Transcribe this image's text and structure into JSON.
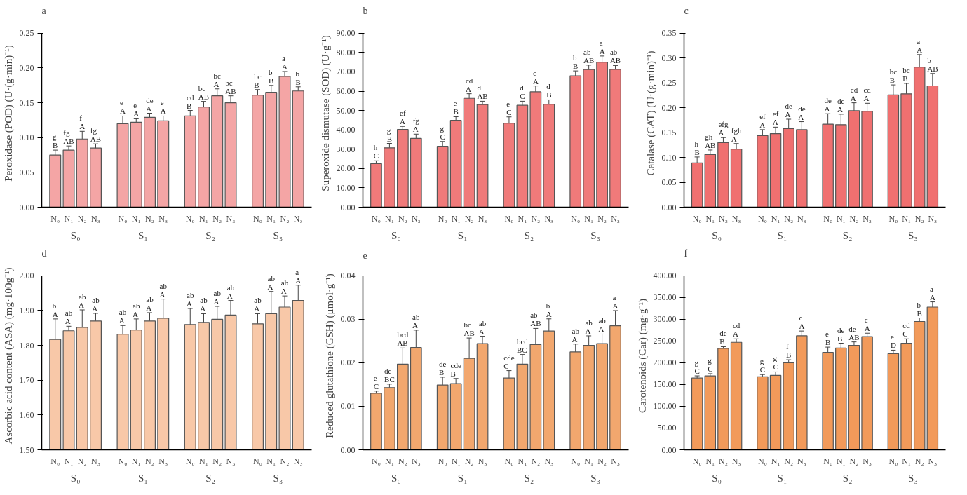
{
  "chart_data": [
    {
      "type": "bar",
      "title": "a",
      "ylabel": "Peroxidase (POD) (U·(g·min)⁻¹)",
      "color": "#f4a5a5",
      "grid": false,
      "categories": [
        "N₀",
        "N₁",
        "N₂",
        "N₃",
        "N₀",
        "N₁",
        "N₂",
        "N₃",
        "N₀",
        "N₁",
        "N₂",
        "N₃",
        "N₀",
        "N₁",
        "N₂",
        "N₃"
      ],
      "annotations": [
        "S₀",
        "S₁",
        "S₂",
        "S₃"
      ],
      "values": [
        0.075,
        0.082,
        0.098,
        0.085,
        0.12,
        0.122,
        0.129,
        0.124,
        0.131,
        0.144,
        0.16,
        0.15,
        0.161,
        0.165,
        0.188,
        0.167
      ],
      "errors": [
        0.007,
        0.006,
        0.011,
        0.006,
        0.011,
        0.005,
        0.006,
        0.007,
        0.008,
        0.008,
        0.01,
        0.01,
        0.008,
        0.01,
        0.007,
        0.006
      ],
      "value_labels": [
        "g\nB",
        "fg\nAB",
        "f\nA",
        "fg\nAB",
        "e\nA",
        "e\nA",
        "de\nA",
        "e\nA",
        "cd\nB",
        "bc\nAB",
        "bc\nA",
        "bc\nAB",
        "bc\nB",
        "b\nB",
        "a\nA",
        "b\nB"
      ],
      "ylim": [
        0,
        0.25
      ],
      "yticks": [
        {
          "value": 0,
          "label": "0.00"
        },
        {
          "value": 0.05,
          "label": "0.05"
        },
        {
          "value": 0.1,
          "label": "0.10"
        },
        {
          "value": 0.15,
          "label": "0.15"
        },
        {
          "value": 0.2,
          "label": "0.20"
        },
        {
          "value": 0.25,
          "label": "0.25"
        }
      ]
    },
    {
      "type": "bar",
      "title": "b",
      "ylabel": "Superoxide dismutase (SOD) (U·g⁻¹)",
      "color": "#f07a7a",
      "grid": false,
      "categories": [
        "N₀",
        "N₁",
        "N₂",
        "N₃",
        "N₀",
        "N₁",
        "N₂",
        "N₃",
        "N₀",
        "N₁",
        "N₂",
        "N₃",
        "N₀",
        "N₁",
        "N₂",
        "N₃"
      ],
      "annotations": [
        "S₀",
        "S₁",
        "S₂",
        "S₃"
      ],
      "values": [
        22.5,
        30.7,
        40.2,
        35.6,
        31.5,
        44.9,
        56.3,
        53.1,
        43.5,
        52.7,
        59.7,
        53.3,
        68.0,
        71.2,
        75.0,
        71.3
      ],
      "errors": [
        1.5,
        2.3,
        1.6,
        2.2,
        2.5,
        1.9,
        2.4,
        1.7,
        3.2,
        2.1,
        3.0,
        2.2,
        2.5,
        2.3,
        3.2,
        2.0
      ],
      "value_labels": [
        "h\nC",
        "g\nB",
        "ef\nA",
        "fg\nA",
        "g\nC",
        "e\nB",
        "cd\nA",
        "d\nAB",
        "e\nC",
        "d\nC",
        "c\nA",
        "d\nB",
        "b\nB",
        "ab\nAB",
        "a\nA",
        "ab\nAB"
      ],
      "ylim": [
        0,
        90
      ],
      "yticks": [
        {
          "value": 0,
          "label": "0.00"
        },
        {
          "value": 10,
          "label": "10.00"
        },
        {
          "value": 20,
          "label": "20.00"
        },
        {
          "value": 30,
          "label": "30.00"
        },
        {
          "value": 40,
          "label": "40.00"
        },
        {
          "value": 50,
          "label": "50.00"
        },
        {
          "value": 60,
          "label": "60.00"
        },
        {
          "value": 70,
          "label": "70.00"
        },
        {
          "value": 80,
          "label": "80.00"
        },
        {
          "value": 90,
          "label": "90.00"
        }
      ]
    },
    {
      "type": "bar",
      "title": "c",
      "ylabel": "Catalase (CAT) (U·(g·min)⁻¹)",
      "color": "#f07070",
      "grid": false,
      "categories": [
        "N₀",
        "N₁",
        "N₂",
        "N₃",
        "N₀",
        "N₁",
        "N₂",
        "N₃",
        "N₀",
        "N₁",
        "N₂",
        "N₃",
        "N₀",
        "N₁",
        "N₂",
        "N₃"
      ],
      "annotations": [
        "S₀",
        "S₁",
        "S₂",
        "S₃"
      ],
      "values": [
        0.089,
        0.106,
        0.13,
        0.117,
        0.144,
        0.148,
        0.158,
        0.156,
        0.167,
        0.166,
        0.194,
        0.193,
        0.226,
        0.228,
        0.282,
        0.244
      ],
      "errors": [
        0.012,
        0.009,
        0.01,
        0.011,
        0.012,
        0.013,
        0.019,
        0.016,
        0.021,
        0.021,
        0.016,
        0.016,
        0.02,
        0.021,
        0.025,
        0.025
      ],
      "value_labels": [
        "h\nB",
        "gh\nAB",
        "efg\nA",
        "fgh\nA",
        "ef\nA",
        "ef\nA",
        "de\nA",
        "de\nA",
        "de\nA",
        "de\nA",
        "cd\nA",
        "cd\nA",
        "bc\nB",
        "bc\nB",
        "a\nA",
        "b\nAB"
      ],
      "ylim": [
        0,
        0.35
      ],
      "yticks": [
        {
          "value": 0,
          "label": "0.00"
        },
        {
          "value": 0.05,
          "label": "0.05"
        },
        {
          "value": 0.1,
          "label": "0.10"
        },
        {
          "value": 0.15,
          "label": "0.15"
        },
        {
          "value": 0.2,
          "label": "0.20"
        },
        {
          "value": 0.25,
          "label": "0.25"
        },
        {
          "value": 0.3,
          "label": "0.30"
        },
        {
          "value": 0.35,
          "label": "0.35"
        }
      ]
    },
    {
      "type": "bar",
      "title": "d",
      "ylabel": "Ascorbic acid content (ASA) (mg·100g⁻¹)",
      "color": "#f8c8a8",
      "grid": false,
      "categories": [
        "N₀",
        "N₁",
        "N₂",
        "N₃",
        "N₀",
        "N₁",
        "N₂",
        "N₃",
        "N₀",
        "N₁",
        "N₂",
        "N₃",
        "N₀",
        "N₁",
        "N₂",
        "N₃"
      ],
      "annotations": [
        "S₀",
        "S₁",
        "S₂",
        "S₃"
      ],
      "values": [
        1.817,
        1.842,
        1.852,
        1.87,
        1.832,
        1.844,
        1.87,
        1.878,
        1.86,
        1.866,
        1.875,
        1.887,
        1.862,
        1.891,
        1.91,
        1.929
      ],
      "errors": [
        0.059,
        0.013,
        0.05,
        0.022,
        0.025,
        0.032,
        0.024,
        0.055,
        0.046,
        0.025,
        0.037,
        0.042,
        0.029,
        0.064,
        0.032,
        0.044
      ],
      "value_labels": [
        "b\nA",
        "ab\nA",
        "ab\nA",
        "ab\nA",
        "ab\nA",
        "ab\nA",
        "ab\nA",
        "ab\nA",
        "ab\nA",
        "ab\nA",
        "ab\nA",
        "ab\nA",
        "ab\nA",
        "ab\nA",
        "ab\nA",
        "a\nA"
      ],
      "ylim": [
        1.5,
        2.0
      ],
      "yticks": [
        {
          "value": 1.5,
          "label": "1.50"
        },
        {
          "value": 1.6,
          "label": "1.60"
        },
        {
          "value": 1.7,
          "label": "1.70"
        },
        {
          "value": 1.8,
          "label": "1.80"
        },
        {
          "value": 1.9,
          "label": "1.90"
        },
        {
          "value": 2.0,
          "label": "2.00"
        }
      ]
    },
    {
      "type": "bar",
      "title": "e",
      "ylabel": "Reduced glutathione (GSH) (μmol·g⁻¹)",
      "color": "#f2a76e",
      "grid": false,
      "categories": [
        "N₀",
        "N₁",
        "N₂",
        "N₃",
        "N₀",
        "N₁",
        "N₂",
        "N₃",
        "N₀",
        "N₁",
        "N₂",
        "N₃",
        "N₀",
        "N₁",
        "N₂",
        "N₃"
      ],
      "annotations": [
        "S₀",
        "S₁",
        "S₂",
        "S₃"
      ],
      "values": [
        0.013,
        0.0143,
        0.0197,
        0.0235,
        0.0149,
        0.0152,
        0.021,
        0.0244,
        0.0165,
        0.0197,
        0.0242,
        0.0273,
        0.0225,
        0.024,
        0.0244,
        0.0285
      ],
      "errors": [
        0.0005,
        0.0008,
        0.0037,
        0.004,
        0.0018,
        0.0012,
        0.0047,
        0.0017,
        0.0017,
        0.0022,
        0.0037,
        0.0028,
        0.0018,
        0.0022,
        0.0022,
        0.0035
      ],
      "value_labels": [
        "e\nC",
        "de\nBC",
        "bcd\nAB",
        "ab\nA",
        "de\nB",
        "cde\nB",
        "bc\nAB",
        "ab\nA",
        "cde\nC",
        "bcd\nBC",
        "ab\nAB",
        "b\nA",
        "ab\nA",
        "ab\nA",
        "ab\nA",
        "a\nA"
      ],
      "ylim": [
        0,
        0.04
      ],
      "yticks": [
        {
          "value": 0,
          "label": "0.00"
        },
        {
          "value": 0.01,
          "label": "0.01"
        },
        {
          "value": 0.02,
          "label": "0.02"
        },
        {
          "value": 0.03,
          "label": "0.03"
        },
        {
          "value": 0.04,
          "label": "0.04"
        }
      ]
    },
    {
      "type": "bar",
      "title": "f",
      "ylabel": "Carotenoids (Car) (mg·g⁻¹)",
      "color": "#f29a5a",
      "grid": false,
      "categories": [
        "N₀",
        "N₁",
        "N₂",
        "N₃",
        "N₀",
        "N₁",
        "N₂",
        "N₃",
        "N₀",
        "N₁",
        "N₂",
        "N₃",
        "N₀",
        "N₁",
        "N₂",
        "N₃"
      ],
      "annotations": [
        "S₀",
        "S₁",
        "S₂",
        "S₃"
      ],
      "values": [
        165,
        170,
        233,
        247,
        168,
        171,
        200,
        262,
        224,
        234,
        240,
        260,
        221,
        245,
        295,
        328
      ],
      "errors": [
        5,
        5,
        4,
        8,
        5,
        8,
        7,
        11,
        12,
        11,
        8,
        8,
        8,
        10,
        8,
        12
      ],
      "value_labels": [
        "g\nC",
        "g\nC",
        "de\nB",
        "cd\nA",
        "g\nC",
        "g\nC",
        "f\nB",
        "c\nA",
        "e\nB",
        "de\nB",
        "de\nAB",
        "c\nA",
        "e\nD",
        "cd\nC",
        "b\nB",
        "a\nA"
      ],
      "ylim": [
        0,
        400
      ],
      "yticks": [
        {
          "value": 0,
          "label": "0.00"
        },
        {
          "value": 50,
          "label": "50.00"
        },
        {
          "value": 100,
          "label": "100.00"
        },
        {
          "value": 150,
          "label": "150.00"
        },
        {
          "value": 200,
          "label": "200.00"
        },
        {
          "value": 250,
          "label": "250.00"
        },
        {
          "value": 300,
          "label": "300.00"
        },
        {
          "value": 350,
          "label": "350.00"
        },
        {
          "value": 400,
          "label": "400.00"
        }
      ]
    }
  ]
}
